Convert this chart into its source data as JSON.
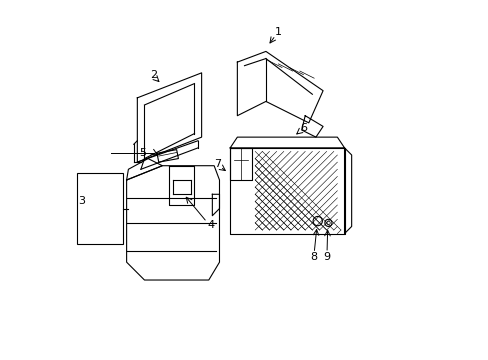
{
  "background_color": "#ffffff",
  "line_color": "#000000",
  "text_color": "#000000",
  "figure_width": 4.89,
  "figure_height": 3.6,
  "dpi": 100
}
